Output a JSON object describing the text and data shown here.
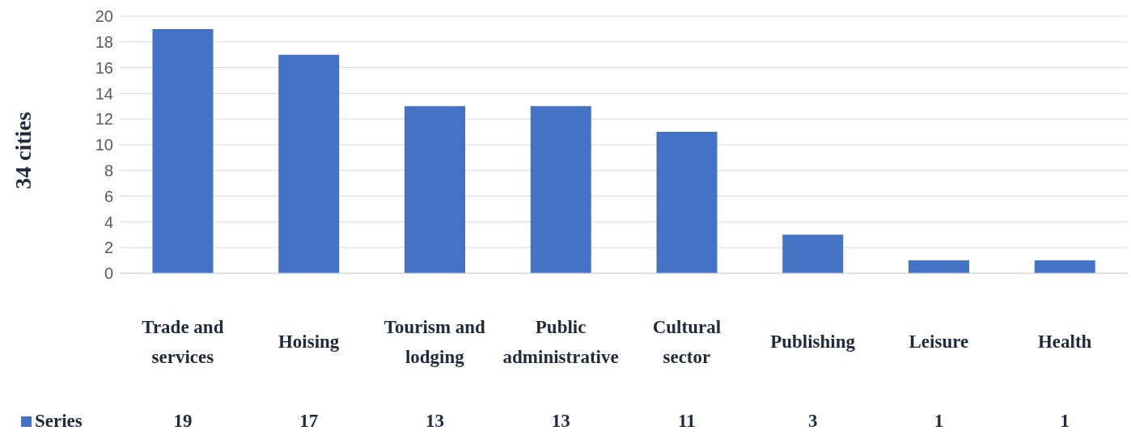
{
  "chart_data": {
    "type": "bar",
    "ylabel": "34 cities",
    "categories": [
      "Trade and services",
      "Hoising",
      "Tourism and lodging",
      "Public administrative",
      "Cultural sector",
      "Publishing",
      "Leisure",
      "Health"
    ],
    "series": [
      {
        "name": "Series",
        "color": "#4472c4",
        "values": [
          19,
          17,
          13,
          13,
          11,
          3,
          1,
          1
        ]
      }
    ],
    "ylim": [
      0,
      20
    ],
    "yticks": [
      0,
      2,
      4,
      6,
      8,
      10,
      12,
      14,
      16,
      18,
      20
    ],
    "grid": "y",
    "data_labels": true,
    "legend": "bottom left"
  }
}
